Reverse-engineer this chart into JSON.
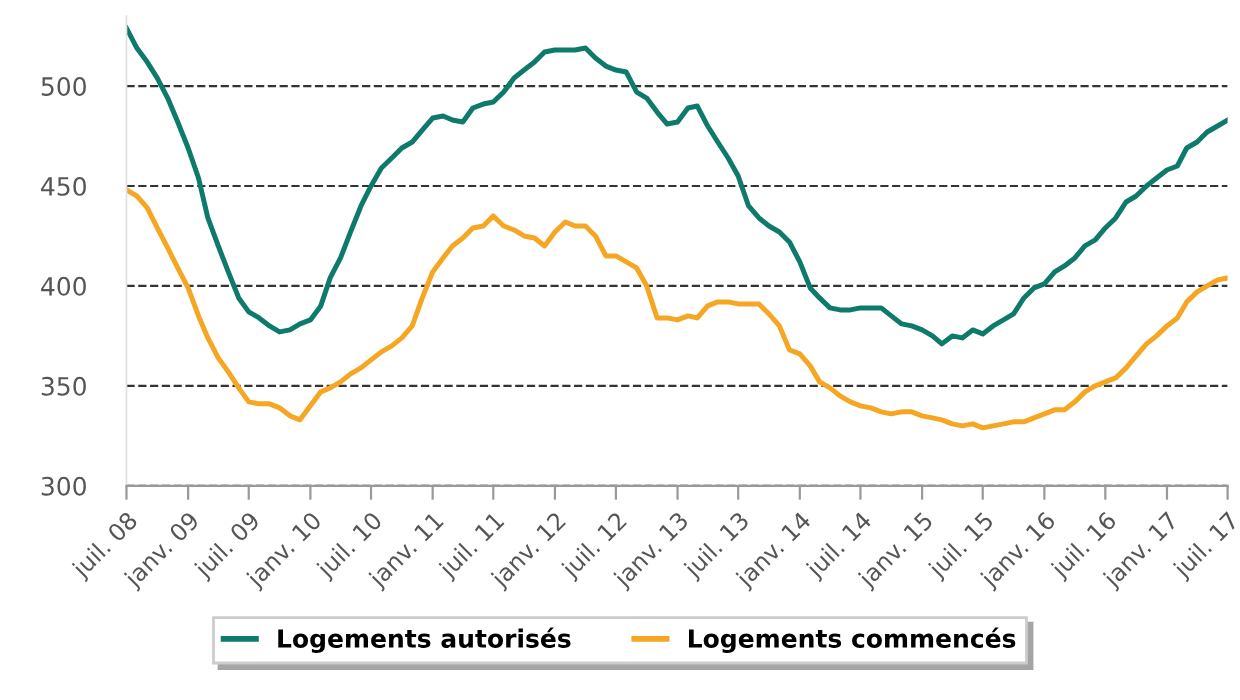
{
  "chart_data": {
    "type": "line",
    "x": [
      "2008-07",
      "2008-08",
      "2008-09",
      "2008-10",
      "2008-11",
      "2008-12",
      "2009-01",
      "2009-02",
      "2009-03",
      "2009-04",
      "2009-05",
      "2009-06",
      "2009-07",
      "2009-08",
      "2009-09",
      "2009-10",
      "2009-11",
      "2009-12",
      "2010-01",
      "2010-02",
      "2010-03",
      "2010-04",
      "2010-05",
      "2010-06",
      "2010-07",
      "2010-08",
      "2010-09",
      "2010-10",
      "2010-11",
      "2010-12",
      "2011-01",
      "2011-02",
      "2011-03",
      "2011-04",
      "2011-05",
      "2011-06",
      "2011-07",
      "2011-08",
      "2011-09",
      "2011-10",
      "2011-11",
      "2011-12",
      "2012-01",
      "2012-02",
      "2012-03",
      "2012-04",
      "2012-05",
      "2012-06",
      "2012-07",
      "2012-08",
      "2012-09",
      "2012-10",
      "2012-11",
      "2012-12",
      "2013-01",
      "2013-02",
      "2013-03",
      "2013-04",
      "2013-05",
      "2013-06",
      "2013-07",
      "2013-08",
      "2013-09",
      "2013-10",
      "2013-11",
      "2013-12",
      "2014-01",
      "2014-02",
      "2014-03",
      "2014-04",
      "2014-05",
      "2014-06",
      "2014-07",
      "2014-08",
      "2014-09",
      "2014-10",
      "2014-11",
      "2014-12",
      "2015-01",
      "2015-02",
      "2015-03",
      "2015-04",
      "2015-05",
      "2015-06",
      "2015-07",
      "2015-08",
      "2015-09",
      "2015-10",
      "2015-11",
      "2015-12",
      "2016-01",
      "2016-02",
      "2016-03",
      "2016-04",
      "2016-05",
      "2016-06",
      "2016-07",
      "2016-08",
      "2016-09",
      "2016-10",
      "2016-11",
      "2016-12",
      "2017-01",
      "2017-02",
      "2017-03",
      "2017-04",
      "2017-05",
      "2017-06",
      "2017-07"
    ],
    "series": [
      {
        "name": "Logements autorisés",
        "color": "#0e7a6c",
        "values": [
          529,
          519,
          512,
          504,
          494,
          482,
          469,
          454,
          434,
          420,
          407,
          394,
          387,
          384,
          380,
          377,
          378,
          381,
          383,
          390,
          404,
          414,
          427,
          440,
          450,
          459,
          464,
          469,
          472,
          478,
          484,
          485,
          483,
          482,
          489,
          491,
          492,
          497,
          504,
          508,
          512,
          517,
          518,
          518,
          518,
          519,
          514,
          510,
          508,
          507,
          497,
          494,
          487,
          481,
          482,
          489,
          490,
          480,
          472,
          464,
          455,
          440,
          434,
          430,
          427,
          422,
          412,
          399,
          394,
          389,
          388,
          388,
          389,
          389,
          389,
          385,
          381,
          380,
          378,
          375,
          371,
          375,
          374,
          378,
          376,
          380,
          383,
          386,
          394,
          399,
          401,
          407,
          410,
          414,
          420,
          423,
          429,
          434,
          442,
          445,
          450,
          454,
          458,
          460,
          469,
          472,
          477,
          480,
          483
        ]
      },
      {
        "name": "Logements commencés",
        "color": "#f5a623",
        "values": [
          448,
          445,
          439,
          429,
          419,
          409,
          399,
          385,
          374,
          364,
          357,
          349,
          342,
          341,
          341,
          339,
          335,
          333,
          340,
          347,
          349,
          352,
          356,
          359,
          363,
          367,
          370,
          374,
          380,
          394,
          407,
          414,
          420,
          424,
          429,
          430,
          435,
          430,
          428,
          425,
          424,
          420,
          427,
          432,
          430,
          430,
          425,
          415,
          415,
          412,
          409,
          400,
          384,
          384,
          383,
          385,
          384,
          390,
          392,
          392,
          391,
          391,
          391,
          386,
          380,
          368,
          366,
          360,
          352,
          349,
          345,
          342,
          340,
          339,
          337,
          336,
          337,
          337,
          335,
          334,
          333,
          331,
          330,
          331,
          329,
          330,
          331,
          332,
          332,
          334,
          336,
          338,
          338,
          342,
          347,
          350,
          352,
          354,
          359,
          365,
          371,
          375,
          380,
          384,
          392,
          397,
          400,
          403,
          404
        ]
      }
    ],
    "xlim": [
      "2008-07",
      "2017-07"
    ],
    "xticks": [
      {
        "value": "2008-07",
        "label": "juil. 08"
      },
      {
        "value": "2009-01",
        "label": "janv. 09"
      },
      {
        "value": "2009-07",
        "label": "juil. 09"
      },
      {
        "value": "2010-01",
        "label": "janv. 10"
      },
      {
        "value": "2010-07",
        "label": "juil. 10"
      },
      {
        "value": "2011-01",
        "label": "janv. 11"
      },
      {
        "value": "2011-07",
        "label": "juil. 11"
      },
      {
        "value": "2012-01",
        "label": "janv. 12"
      },
      {
        "value": "2012-07",
        "label": "juil. 12"
      },
      {
        "value": "2013-01",
        "label": "janv. 13"
      },
      {
        "value": "2013-07",
        "label": "juil. 13"
      },
      {
        "value": "2014-01",
        "label": "janv. 14"
      },
      {
        "value": "2014-07",
        "label": "juil. 14"
      },
      {
        "value": "2015-01",
        "label": "janv. 15"
      },
      {
        "value": "2015-07",
        "label": "juil. 15"
      },
      {
        "value": "2016-01",
        "label": "janv. 16"
      },
      {
        "value": "2016-07",
        "label": "juil. 16"
      },
      {
        "value": "2017-01",
        "label": "janv. 17"
      },
      {
        "value": "2017-07",
        "label": "juil. 17"
      }
    ],
    "ylim": [
      300,
      535
    ],
    "yticks": [
      300,
      350,
      400,
      450,
      500
    ],
    "grid": "y",
    "legend": "bottom",
    "marker": "none",
    "line_style": "solid"
  }
}
